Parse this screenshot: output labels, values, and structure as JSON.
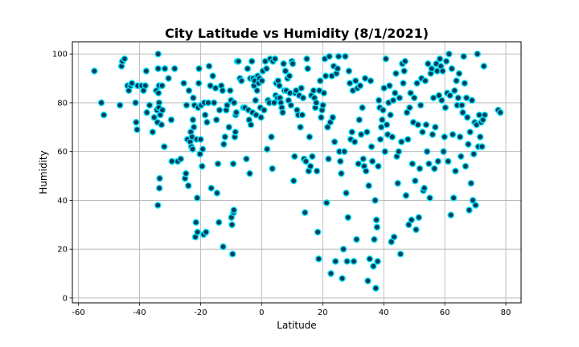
{
  "chart_data": {
    "type": "scatter",
    "title": "City Latitude vs Humidity (8/1/2021)",
    "xlabel": "Latitude",
    "ylabel": "Humidity",
    "xlim": [
      -62,
      85
    ],
    "ylim": [
      -2,
      105
    ],
    "x_ticks": [
      -60,
      -40,
      -20,
      0,
      20,
      40,
      60,
      80
    ],
    "y_ticks": [
      0,
      20,
      40,
      60,
      80,
      100
    ],
    "grid": true,
    "marker_face_color": "#0d3c5a",
    "marker_edge_color": "#00e5ff",
    "points": [
      [
        -54.8,
        93
      ],
      [
        -52.5,
        80
      ],
      [
        -51.7,
        75
      ],
      [
        -46.4,
        79
      ],
      [
        -45.9,
        95
      ],
      [
        -45.6,
        97
      ],
      [
        -44.9,
        98
      ],
      [
        -43.9,
        87
      ],
      [
        -43.5,
        85
      ],
      [
        -42.9,
        87
      ],
      [
        -42.5,
        88
      ],
      [
        -41.3,
        80
      ],
      [
        -41.1,
        72
      ],
      [
        -40.8,
        69
      ],
      [
        -40.6,
        87
      ],
      [
        -39.3,
        87
      ],
      [
        -38.1,
        87
      ],
      [
        -38.7,
        85
      ],
      [
        -37.8,
        93
      ],
      [
        -37.6,
        76
      ],
      [
        -36.7,
        79
      ],
      [
        -35.7,
        68
      ],
      [
        -35.2,
        74
      ],
      [
        -34.5,
        85
      ],
      [
        -34.1,
        72
      ],
      [
        -34.3,
        77
      ],
      [
        -34.0,
        38
      ],
      [
        -33.9,
        100
      ],
      [
        -33.9,
        94
      ],
      [
        -33.6,
        87
      ],
      [
        -33.6,
        80
      ],
      [
        -33.7,
        78
      ],
      [
        -33.8,
        84
      ],
      [
        -33.5,
        45
      ],
      [
        -33.4,
        49
      ],
      [
        -33.2,
        75
      ],
      [
        -32.8,
        71
      ],
      [
        -32.5,
        77
      ],
      [
        -32.6,
        87
      ],
      [
        -31.9,
        62
      ],
      [
        -31.7,
        94
      ],
      [
        -30.5,
        90
      ],
      [
        -29.6,
        73
      ],
      [
        -29.4,
        56
      ],
      [
        -28.5,
        94
      ],
      [
        -27.5,
        56
      ],
      [
        -26.5,
        57
      ],
      [
        -25.5,
        88
      ],
      [
        -25.1,
        49
      ],
      [
        -24.8,
        51
      ],
      [
        -24.6,
        79
      ],
      [
        -24.3,
        65
      ],
      [
        -24.0,
        46
      ],
      [
        -23.8,
        85
      ],
      [
        -23.4,
        64
      ],
      [
        -23.2,
        68
      ],
      [
        -23.0,
        62
      ],
      [
        -22.8,
        66
      ],
      [
        -22.6,
        61
      ],
      [
        -22.4,
        82
      ],
      [
        -22.2,
        70
      ],
      [
        -22.5,
        73
      ],
      [
        -22.0,
        79
      ],
      [
        -21.7,
        25
      ],
      [
        -21.5,
        31
      ],
      [
        -21.3,
        65
      ],
      [
        -21.1,
        41
      ],
      [
        -21.0,
        27
      ],
      [
        -20.8,
        78
      ],
      [
        -20.6,
        88
      ],
      [
        -20.5,
        94
      ],
      [
        -20.2,
        59
      ],
      [
        -20.0,
        65
      ],
      [
        -19.8,
        79
      ],
      [
        -19.5,
        54
      ],
      [
        -19.3,
        61
      ],
      [
        -19.0,
        26
      ],
      [
        -18.8,
        80
      ],
      [
        -18.5,
        75
      ],
      [
        -18.2,
        27
      ],
      [
        -17.9,
        72
      ],
      [
        -17.5,
        80
      ],
      [
        -17.2,
        95
      ],
      [
        -16.8,
        87
      ],
      [
        -16.5,
        45
      ],
      [
        -16.0,
        91
      ],
      [
        -15.6,
        80
      ],
      [
        -15.1,
        86
      ],
      [
        -14.8,
        73
      ],
      [
        -14.6,
        43
      ],
      [
        -14.3,
        55
      ],
      [
        -14.0,
        31
      ],
      [
        -13.8,
        77
      ],
      [
        -13.2,
        87
      ],
      [
        -12.8,
        85
      ],
      [
        -12.6,
        21
      ],
      [
        -12.4,
        63
      ],
      [
        -12.0,
        66
      ],
      [
        -11.6,
        77
      ],
      [
        -11.3,
        79
      ],
      [
        -10.7,
        70
      ],
      [
        -10.3,
        85
      ],
      [
        -10.0,
        81
      ],
      [
        -9.9,
        33
      ],
      [
        -9.7,
        30
      ],
      [
        -9.5,
        18
      ],
      [
        -9.3,
        55
      ],
      [
        -9.2,
        35
      ],
      [
        -9.1,
        36
      ],
      [
        -9.0,
        80
      ],
      [
        -8.8,
        66
      ],
      [
        -8.6,
        68
      ],
      [
        -8.5,
        75
      ],
      [
        -8.3,
        76
      ],
      [
        -8.0,
        97
      ],
      [
        -7.6,
        97
      ],
      [
        -7.1,
        90
      ],
      [
        -6.6,
        89
      ],
      [
        -6.0,
        78
      ],
      [
        -5.5,
        78
      ],
      [
        -5.0,
        57
      ],
      [
        -4.6,
        94
      ],
      [
        -4.3,
        77
      ],
      [
        -4.1,
        73
      ],
      [
        -3.9,
        51
      ],
      [
        -3.7,
        90
      ],
      [
        -3.5,
        71
      ],
      [
        -3.2,
        97
      ],
      [
        -3.0,
        76
      ],
      [
        -2.8,
        90
      ],
      [
        -2.5,
        87
      ],
      [
        -2.3,
        89
      ],
      [
        -2.0,
        81
      ],
      [
        -1.8,
        75
      ],
      [
        -1.5,
        85
      ],
      [
        -1.3,
        91
      ],
      [
        -1.0,
        88
      ],
      [
        -0.7,
        90
      ],
      [
        -0.4,
        78
      ],
      [
        -0.2,
        74
      ],
      [
        0.1,
        89
      ],
      [
        0.4,
        93
      ],
      [
        0.8,
        77
      ],
      [
        1.2,
        97
      ],
      [
        1.6,
        94
      ],
      [
        1.8,
        61
      ],
      [
        2.1,
        81
      ],
      [
        2.5,
        80
      ],
      [
        2.8,
        98
      ],
      [
        3.2,
        66
      ],
      [
        3.5,
        53
      ],
      [
        3.7,
        97
      ],
      [
        4.1,
        80
      ],
      [
        4.4,
        98
      ],
      [
        4.6,
        83
      ],
      [
        4.8,
        88
      ],
      [
        5.2,
        82
      ],
      [
        5.4,
        89
      ],
      [
        5.8,
        87
      ],
      [
        6.0,
        82
      ],
      [
        6.3,
        80
      ],
      [
        6.6,
        78
      ],
      [
        6.9,
        76
      ],
      [
        7.2,
        96
      ],
      [
        7.5,
        85
      ],
      [
        7.8,
        93
      ],
      [
        8.1,
        85
      ],
      [
        8.5,
        90
      ],
      [
        8.8,
        81
      ],
      [
        9.1,
        91
      ],
      [
        9.3,
        84
      ],
      [
        9.6,
        79
      ],
      [
        9.9,
        97
      ],
      [
        10.2,
        96
      ],
      [
        10.5,
        48
      ],
      [
        10.8,
        58
      ],
      [
        11.0,
        84
      ],
      [
        11.3,
        85
      ],
      [
        11.6,
        77
      ],
      [
        12.0,
        75
      ],
      [
        12.3,
        83
      ],
      [
        12.7,
        70
      ],
      [
        13.0,
        86
      ],
      [
        13.3,
        75
      ],
      [
        13.6,
        82
      ],
      [
        13.9,
        57
      ],
      [
        14.2,
        35
      ],
      [
        14.5,
        56
      ],
      [
        14.8,
        98
      ],
      [
        15.1,
        94
      ],
      [
        15.4,
        52
      ],
      [
        15.7,
        66
      ],
      [
        16.0,
        54
      ],
      [
        16.3,
        83
      ],
      [
        16.6,
        58
      ],
      [
        17.0,
        85
      ],
      [
        17.3,
        82
      ],
      [
        17.6,
        78
      ],
      [
        17.9,
        80
      ],
      [
        18.1,
        52
      ],
      [
        18.4,
        27
      ],
      [
        18.7,
        16
      ],
      [
        18.9,
        85
      ],
      [
        19.2,
        89
      ],
      [
        19.5,
        74
      ],
      [
        19.8,
        77
      ],
      [
        20.1,
        79
      ],
      [
        20.4,
        84
      ],
      [
        20.7,
        98
      ],
      [
        21.0,
        91
      ],
      [
        21.3,
        39
      ],
      [
        21.6,
        70
      ],
      [
        21.9,
        57
      ],
      [
        22.2,
        99
      ],
      [
        22.5,
        72
      ],
      [
        22.7,
        10
      ],
      [
        23.0,
        91
      ],
      [
        23.3,
        74
      ],
      [
        23.6,
        95
      ],
      [
        23.9,
        64
      ],
      [
        24.2,
        15
      ],
      [
        24.5,
        92
      ],
      [
        24.9,
        94
      ],
      [
        25.2,
        99
      ],
      [
        25.5,
        60
      ],
      [
        25.8,
        56
      ],
      [
        26.1,
        51
      ],
      [
        26.4,
        8
      ],
      [
        26.8,
        20
      ],
      [
        27.1,
        60
      ],
      [
        27.4,
        99
      ],
      [
        27.7,
        43
      ],
      [
        28.0,
        15
      ],
      [
        28.3,
        33
      ],
      [
        28.6,
        93
      ],
      [
        28.9,
        88
      ],
      [
        29.2,
        65
      ],
      [
        29.6,
        68
      ],
      [
        29.9,
        85
      ],
      [
        30.2,
        15
      ],
      [
        30.5,
        64
      ],
      [
        30.8,
        89
      ],
      [
        31.1,
        24
      ],
      [
        31.4,
        86
      ],
      [
        31.7,
        55
      ],
      [
        32.0,
        73
      ],
      [
        32.3,
        87
      ],
      [
        32.6,
        67
      ],
      [
        33.0,
        78
      ],
      [
        33.3,
        57
      ],
      [
        33.6,
        54
      ],
      [
        33.9,
        90
      ],
      [
        34.2,
        52
      ],
      [
        34.5,
        68
      ],
      [
        34.8,
        7
      ],
      [
        35.1,
        46
      ],
      [
        35.4,
        16
      ],
      [
        35.7,
        89
      ],
      [
        36.0,
        62
      ],
      [
        36.3,
        56
      ],
      [
        36.6,
        13
      ],
      [
        36.9,
        24
      ],
      [
        37.2,
        40
      ],
      [
        37.4,
        4
      ],
      [
        37.6,
        32
      ],
      [
        37.8,
        29
      ],
      [
        38.0,
        15
      ],
      [
        38.2,
        54
      ],
      [
        38.4,
        81
      ],
      [
        38.7,
        78
      ],
      [
        38.9,
        65
      ],
      [
        39.2,
        70
      ],
      [
        39.5,
        73
      ],
      [
        39.8,
        77
      ],
      [
        40.1,
        86
      ],
      [
        40.4,
        60
      ],
      [
        40.7,
        98
      ],
      [
        41.0,
        71
      ],
      [
        41.3,
        67
      ],
      [
        41.6,
        80
      ],
      [
        41.9,
        87
      ],
      [
        42.2,
        75
      ],
      [
        42.5,
        23
      ],
      [
        42.8,
        66
      ],
      [
        43.1,
        81
      ],
      [
        43.4,
        25
      ],
      [
        43.7,
        84
      ],
      [
        44.0,
        92
      ],
      [
        44.3,
        58
      ],
      [
        44.6,
        47
      ],
      [
        44.9,
        60
      ],
      [
        45.2,
        82
      ],
      [
        45.5,
        18
      ],
      [
        45.8,
        64
      ],
      [
        46.1,
        96
      ],
      [
        46.4,
        88
      ],
      [
        46.7,
        93
      ],
      [
        47.0,
        97
      ],
      [
        47.3,
        42
      ],
      [
        47.6,
        76
      ],
      [
        47.9,
        65
      ],
      [
        48.2,
        30
      ],
      [
        48.5,
        78
      ],
      [
        48.8,
        84
      ],
      [
        49.1,
        32
      ],
      [
        49.4,
        55
      ],
      [
        49.7,
        72
      ],
      [
        50.0,
        82
      ],
      [
        50.3,
        48
      ],
      [
        50.6,
        28
      ],
      [
        50.9,
        88
      ],
      [
        51.2,
        71
      ],
      [
        51.5,
        33
      ],
      [
        51.8,
        53
      ],
      [
        52.1,
        79
      ],
      [
        52.4,
        90
      ],
      [
        52.7,
        68
      ],
      [
        53.0,
        44
      ],
      [
        53.3,
        45
      ],
      [
        53.6,
        89
      ],
      [
        53.9,
        71
      ],
      [
        54.2,
        60
      ],
      [
        54.5,
        96
      ],
      [
        54.8,
        55
      ],
      [
        55.1,
        41
      ],
      [
        55.4,
        92
      ],
      [
        55.7,
        94
      ],
      [
        56.0,
        67
      ],
      [
        56.3,
        82
      ],
      [
        56.6,
        53
      ],
      [
        56.9,
        70
      ],
      [
        57.2,
        96
      ],
      [
        57.5,
        93
      ],
      [
        57.8,
        56
      ],
      [
        58.1,
        83
      ],
      [
        58.4,
        98
      ],
      [
        58.7,
        95
      ],
      [
        59.0,
        81
      ],
      [
        59.3,
        93
      ],
      [
        59.6,
        60
      ],
      [
        59.9,
        66
      ],
      [
        60.2,
        78
      ],
      [
        60.5,
        97
      ],
      [
        60.8,
        84
      ],
      [
        61.1,
        56
      ],
      [
        61.4,
        100
      ],
      [
        61.7,
        83
      ],
      [
        62.0,
        34
      ],
      [
        62.3,
        94
      ],
      [
        62.6,
        67
      ],
      [
        62.9,
        41
      ],
      [
        63.2,
        85
      ],
      [
        63.5,
        52
      ],
      [
        63.8,
        89
      ],
      [
        64.1,
        79
      ],
      [
        64.4,
        82
      ],
      [
        64.7,
        92
      ],
      [
        65.0,
        66
      ],
      [
        65.3,
        58
      ],
      [
        65.6,
        79
      ],
      [
        65.9,
        76
      ],
      [
        66.2,
        99
      ],
      [
        66.5,
        88
      ],
      [
        66.8,
        54
      ],
      [
        67.1,
        82
      ],
      [
        67.4,
        74
      ],
      [
        67.7,
        63
      ],
      [
        68.0,
        36
      ],
      [
        68.3,
        68
      ],
      [
        68.6,
        47
      ],
      [
        68.9,
        81
      ],
      [
        69.2,
        40
      ],
      [
        69.5,
        59
      ],
      [
        69.8,
        72
      ],
      [
        70.1,
        38
      ],
      [
        70.4,
        71
      ],
      [
        70.7,
        100
      ],
      [
        71.0,
        62
      ],
      [
        71.3,
        75
      ],
      [
        71.6,
        66
      ],
      [
        71.9,
        72
      ],
      [
        72.2,
        62
      ],
      [
        72.5,
        73
      ],
      [
        72.8,
        95
      ],
      [
        73.1,
        75
      ],
      [
        77.5,
        77
      ],
      [
        78.2,
        76
      ]
    ]
  }
}
